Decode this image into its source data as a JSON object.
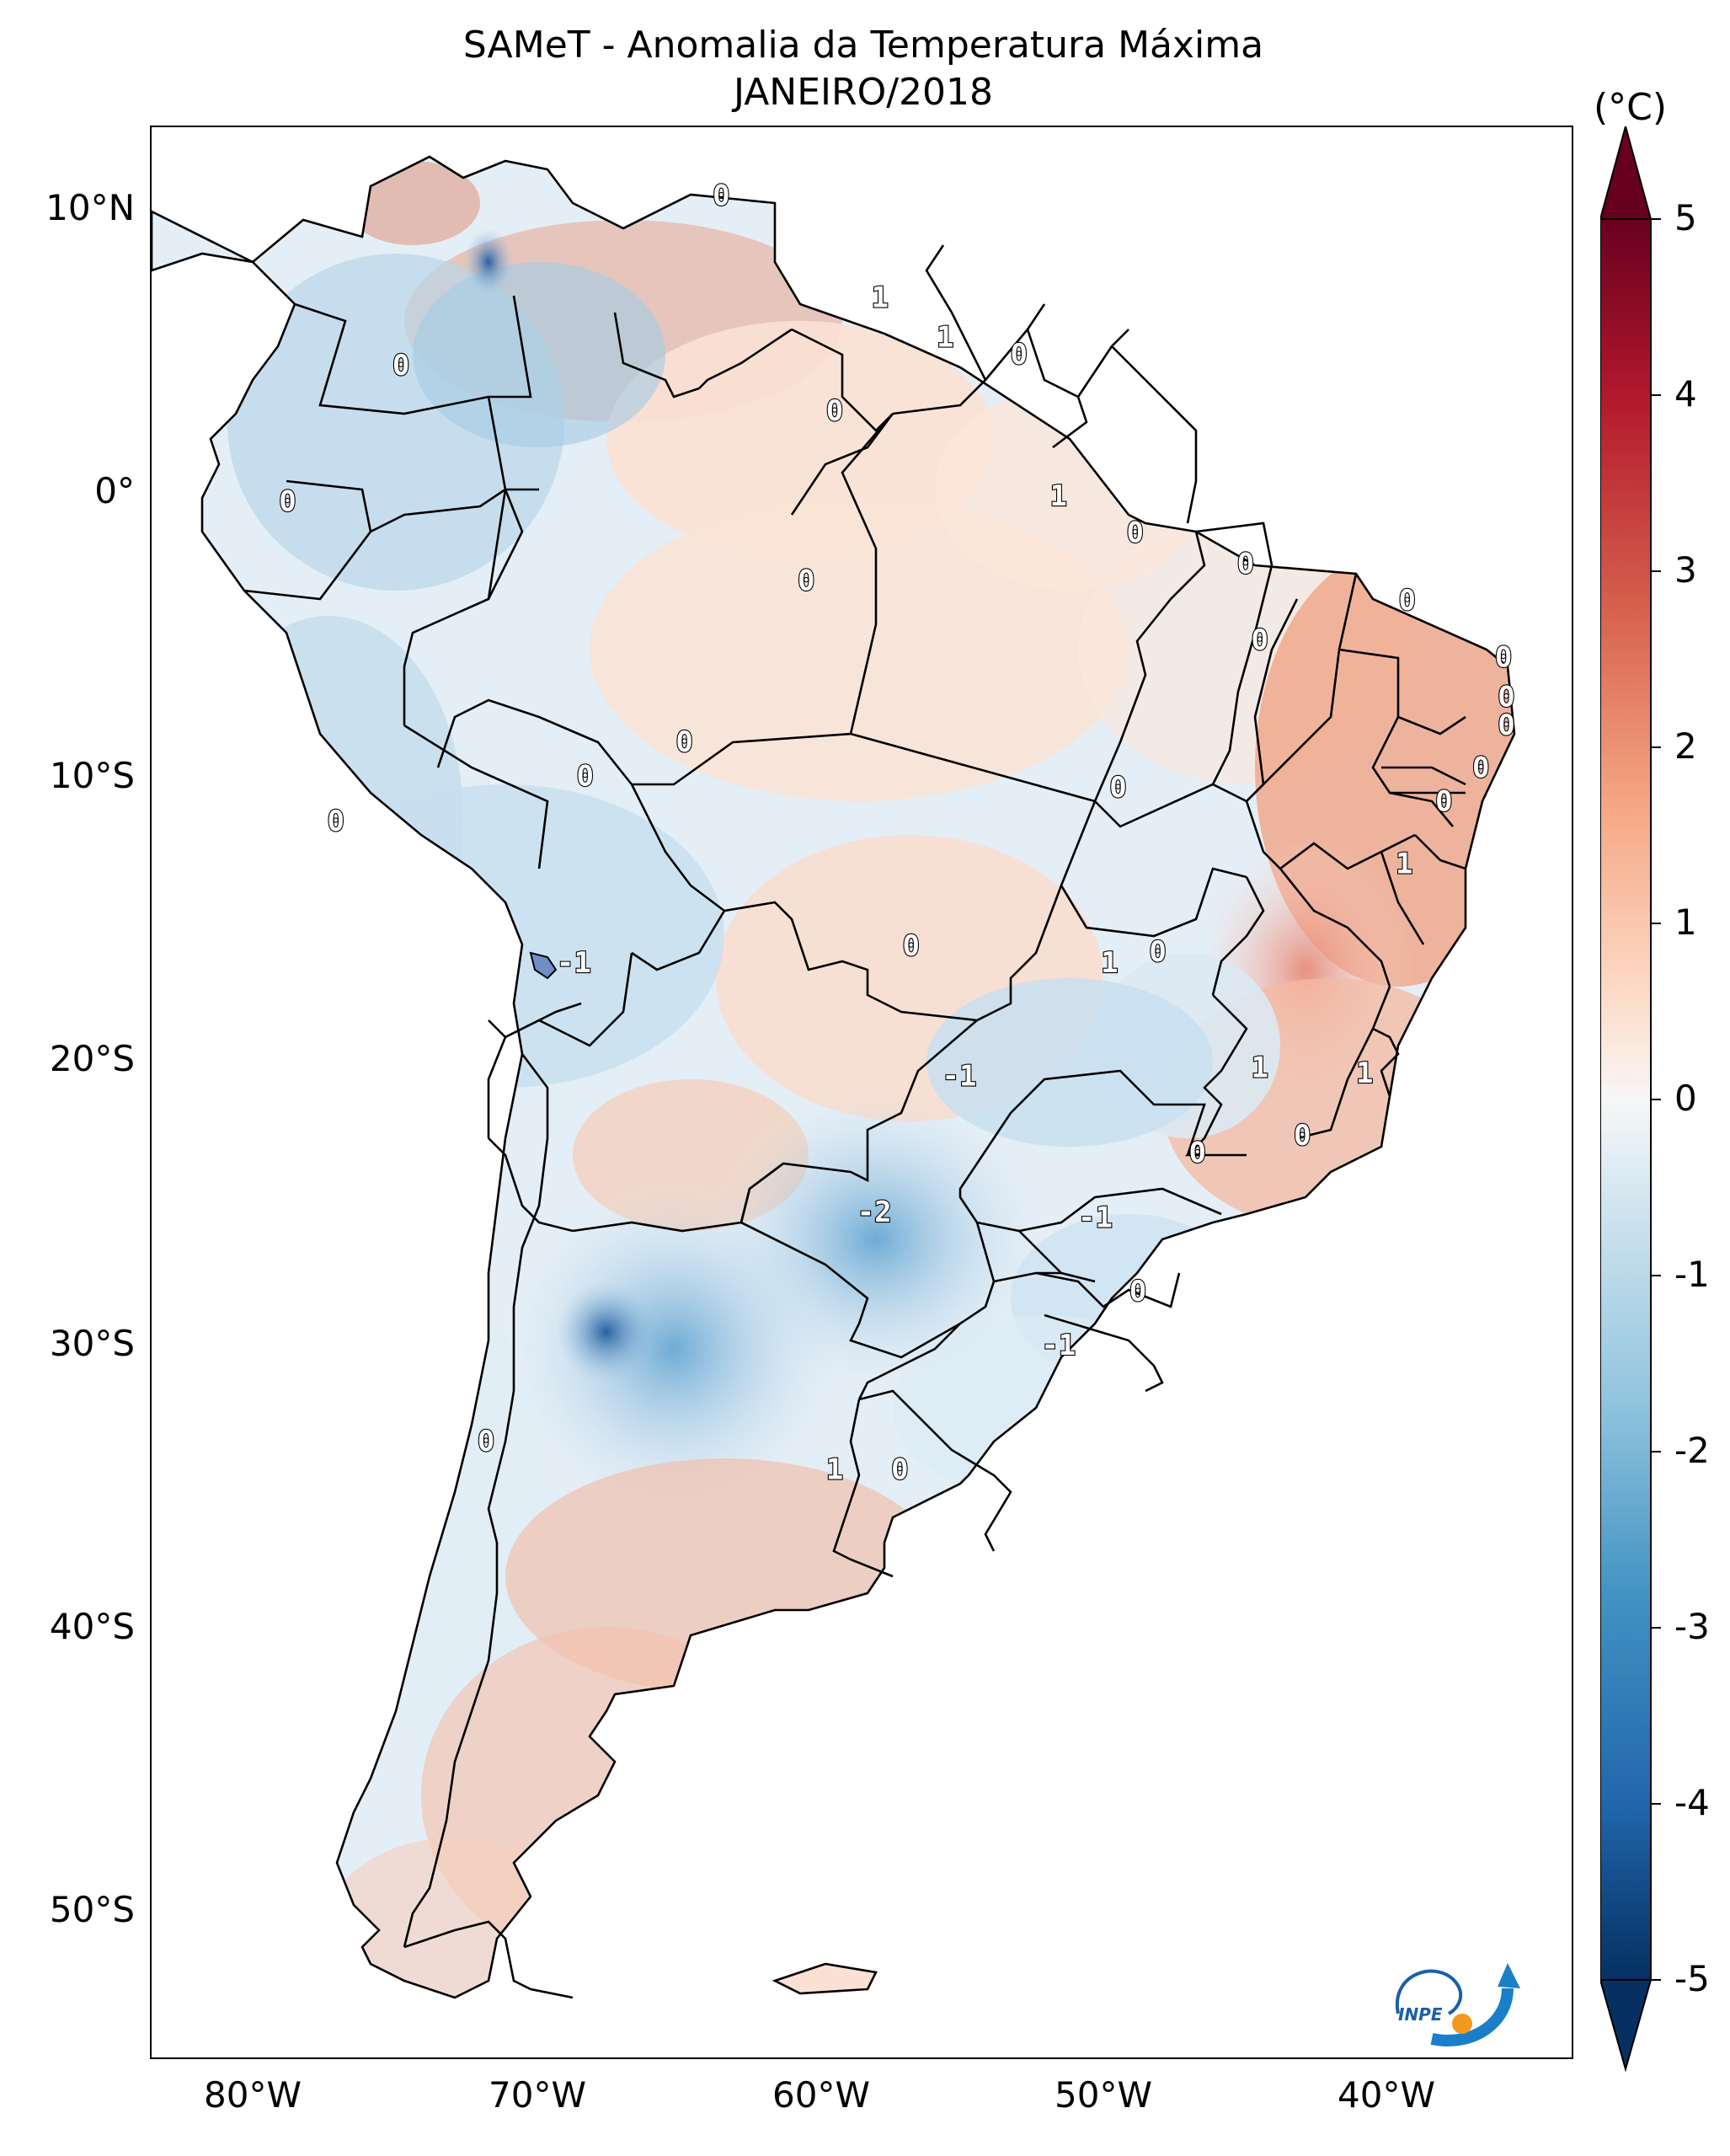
{
  "header": {
    "title_line1": "SAMeT - Anomalia da Temperatura Máxima",
    "title_line2": "JANEIRO/2018"
  },
  "colorbar": {
    "unit": "(°C)",
    "ticks": [
      "5",
      "4",
      "3",
      "2",
      "1",
      "0",
      "-1",
      "-2",
      "-3",
      "-4",
      "-5"
    ],
    "min": -5,
    "max": 5,
    "colors": [
      "#053061",
      "#2166ac",
      "#4393c3",
      "#92c5de",
      "#d1e5f0",
      "#f7f7f7",
      "#fddbc7",
      "#f4a582",
      "#d6604d",
      "#b2182b",
      "#67001f"
    ]
  },
  "axes": {
    "y_labels": [
      "10°N",
      "0°",
      "10°S",
      "20°S",
      "30°S",
      "40°S",
      "50°S"
    ],
    "x_labels": [
      "80°W",
      "70°W",
      "60°W",
      "50°W",
      "40°W"
    ]
  },
  "contour_labels": [
    {
      "text": "0",
      "lon": -62.9,
      "lat": 10.6
    },
    {
      "text": "1",
      "lon": -57.3,
      "lat": 7.0
    },
    {
      "text": "1",
      "lon": -55.0,
      "lat": 5.6
    },
    {
      "text": "0",
      "lon": -52.4,
      "lat": 5.0
    },
    {
      "text": "0",
      "lon": -74.2,
      "lat": 4.6
    },
    {
      "text": "0",
      "lon": -58.9,
      "lat": 3.0
    },
    {
      "text": "0",
      "lon": -78.2,
      "lat": -0.2
    },
    {
      "text": "1",
      "lon": -51.0,
      "lat": 0.0
    },
    {
      "text": "0",
      "lon": -48.3,
      "lat": -1.3
    },
    {
      "text": "0",
      "lon": -59.9,
      "lat": -3.0
    },
    {
      "text": "0",
      "lon": -44.4,
      "lat": -2.4
    },
    {
      "text": "0",
      "lon": -38.7,
      "lat": -3.7
    },
    {
      "text": "0",
      "lon": -43.9,
      "lat": -5.1
    },
    {
      "text": "0",
      "lon": -35.3,
      "lat": -5.7
    },
    {
      "text": "0",
      "lon": -35.2,
      "lat": -7.1
    },
    {
      "text": "0",
      "lon": -35.2,
      "lat": -8.1
    },
    {
      "text": "0",
      "lon": -64.2,
      "lat": -8.7
    },
    {
      "text": "0",
      "lon": -36.1,
      "lat": -9.6
    },
    {
      "text": "0",
      "lon": -67.7,
      "lat": -9.9
    },
    {
      "text": "0",
      "lon": -48.9,
      "lat": -10.3
    },
    {
      "text": "0",
      "lon": -37.4,
      "lat": -10.8
    },
    {
      "text": "0",
      "lon": -76.5,
      "lat": -11.5
    },
    {
      "text": "1",
      "lon": -38.8,
      "lat": -13.0
    },
    {
      "text": "0",
      "lon": -56.2,
      "lat": -15.9
    },
    {
      "text": "0",
      "lon": -47.5,
      "lat": -16.1
    },
    {
      "text": "1",
      "lon": -49.2,
      "lat": -16.5
    },
    {
      "text": "-1",
      "lon": -68.1,
      "lat": -16.5
    },
    {
      "text": "1",
      "lon": -43.9,
      "lat": -20.2
    },
    {
      "text": "-1",
      "lon": -54.5,
      "lat": -20.5
    },
    {
      "text": "1",
      "lon": -40.2,
      "lat": -20.4
    },
    {
      "text": "0",
      "lon": -42.4,
      "lat": -22.6
    },
    {
      "text": "0",
      "lon": -46.1,
      "lat": -23.2
    },
    {
      "text": "-2",
      "lon": -57.5,
      "lat": -25.3
    },
    {
      "text": "-1",
      "lon": -49.7,
      "lat": -25.5
    },
    {
      "text": "0",
      "lon": -48.2,
      "lat": -28.1
    },
    {
      "text": "-1",
      "lon": -51.0,
      "lat": -30.0
    },
    {
      "text": "0",
      "lon": -71.2,
      "lat": -33.4
    },
    {
      "text": "1",
      "lon": -58.9,
      "lat": -34.4
    },
    {
      "text": "0",
      "lon": -56.6,
      "lat": -34.4
    }
  ]
}
